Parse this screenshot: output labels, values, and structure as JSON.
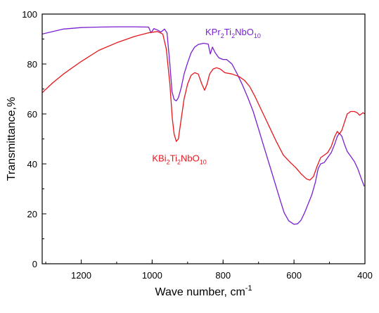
{
  "chart_data": {
    "type": "line",
    "xlabel": {
      "text": "Wave number, cm",
      "sup": "-1"
    },
    "ylabel": "Transmittance,%",
    "xlim": [
      1310,
      400
    ],
    "ylim": [
      0,
      100
    ],
    "x_reversed": true,
    "xticks": [
      1200,
      1000,
      800,
      600,
      400
    ],
    "yticks": [
      0,
      20,
      40,
      60,
      80,
      100
    ],
    "grid": false,
    "series": [
      {
        "name": "KPr2Ti2NbO10",
        "color": "#7a1fd1",
        "points": [
          [
            1310,
            92.0
          ],
          [
            1250,
            94.0
          ],
          [
            1200,
            94.6
          ],
          [
            1150,
            94.8
          ],
          [
            1100,
            94.9
          ],
          [
            1050,
            94.9
          ],
          [
            1010,
            94.8
          ],
          [
            1003,
            92.5
          ],
          [
            995,
            94.2
          ],
          [
            985,
            93.6
          ],
          [
            975,
            92.8
          ],
          [
            965,
            94.0
          ],
          [
            958,
            92.5
          ],
          [
            950,
            80.0
          ],
          [
            944,
            69.0
          ],
          [
            938,
            65.8
          ],
          [
            932,
            65.2
          ],
          [
            926,
            66.5
          ],
          [
            918,
            70.5
          ],
          [
            910,
            76.0
          ],
          [
            900,
            80.5
          ],
          [
            890,
            84.5
          ],
          [
            880,
            86.8
          ],
          [
            870,
            87.8
          ],
          [
            855,
            88.3
          ],
          [
            842,
            88.0
          ],
          [
            836,
            84.0
          ],
          [
            830,
            86.8
          ],
          [
            822,
            84.5
          ],
          [
            812,
            82.5
          ],
          [
            800,
            81.8
          ],
          [
            790,
            81.8
          ],
          [
            775,
            80.0
          ],
          [
            760,
            76.0
          ],
          [
            745,
            71.5
          ],
          [
            730,
            66.5
          ],
          [
            715,
            61.0
          ],
          [
            700,
            54.0
          ],
          [
            685,
            47.0
          ],
          [
            670,
            40.0
          ],
          [
            655,
            33.0
          ],
          [
            640,
            26.0
          ],
          [
            628,
            20.5
          ],
          [
            615,
            17.2
          ],
          [
            600,
            15.8
          ],
          [
            590,
            16.0
          ],
          [
            580,
            17.5
          ],
          [
            570,
            20.5
          ],
          [
            560,
            24.0
          ],
          [
            550,
            27.5
          ],
          [
            540,
            32.5
          ],
          [
            532,
            38.0
          ],
          [
            525,
            40.0
          ],
          [
            515,
            40.5
          ],
          [
            505,
            42.5
          ],
          [
            495,
            44.5
          ],
          [
            485,
            48.0
          ],
          [
            478,
            51.0
          ],
          [
            472,
            52.3
          ],
          [
            465,
            51.0
          ],
          [
            458,
            48.0
          ],
          [
            450,
            45.0
          ],
          [
            440,
            43.0
          ],
          [
            430,
            41.0
          ],
          [
            420,
            38.0
          ],
          [
            410,
            34.0
          ],
          [
            402,
            31.0
          ]
        ]
      },
      {
        "name": "KBi2Ti2NbO10",
        "color": "#e6161c",
        "points": [
          [
            1310,
            68.5
          ],
          [
            1280,
            72.5
          ],
          [
            1250,
            76.0
          ],
          [
            1200,
            81.0
          ],
          [
            1150,
            85.5
          ],
          [
            1100,
            88.5
          ],
          [
            1050,
            91.0
          ],
          [
            1010,
            92.5
          ],
          [
            985,
            93.0
          ],
          [
            970,
            92.0
          ],
          [
            960,
            86.0
          ],
          [
            950,
            72.0
          ],
          [
            943,
            58.0
          ],
          [
            938,
            52.0
          ],
          [
            932,
            49.0
          ],
          [
            926,
            50.0
          ],
          [
            918,
            58.0
          ],
          [
            910,
            66.0
          ],
          [
            900,
            72.0
          ],
          [
            890,
            75.5
          ],
          [
            880,
            76.5
          ],
          [
            870,
            76.0
          ],
          [
            860,
            72.0
          ],
          [
            852,
            69.5
          ],
          [
            845,
            72.0
          ],
          [
            838,
            76.0
          ],
          [
            828,
            78.0
          ],
          [
            818,
            78.5
          ],
          [
            808,
            78.0
          ],
          [
            795,
            76.5
          ],
          [
            775,
            76.0
          ],
          [
            755,
            75.0
          ],
          [
            740,
            73.5
          ],
          [
            725,
            71.0
          ],
          [
            710,
            67.0
          ],
          [
            690,
            61.0
          ],
          [
            670,
            55.0
          ],
          [
            650,
            49.0
          ],
          [
            630,
            43.5
          ],
          [
            610,
            40.5
          ],
          [
            595,
            38.5
          ],
          [
            580,
            36.0
          ],
          [
            565,
            34.0
          ],
          [
            555,
            33.5
          ],
          [
            545,
            35.0
          ],
          [
            535,
            39.0
          ],
          [
            525,
            42.5
          ],
          [
            515,
            43.5
          ],
          [
            505,
            44.5
          ],
          [
            495,
            47.0
          ],
          [
            485,
            51.0
          ],
          [
            478,
            53.0
          ],
          [
            472,
            52.0
          ],
          [
            465,
            53.5
          ],
          [
            458,
            56.5
          ],
          [
            450,
            60.0
          ],
          [
            440,
            61.0
          ],
          [
            430,
            61.0
          ],
          [
            422,
            60.5
          ],
          [
            415,
            59.5
          ],
          [
            410,
            60.0
          ],
          [
            405,
            60.5
          ],
          [
            401,
            60.0
          ]
        ]
      }
    ],
    "annotations": [
      {
        "for": "KPr2Ti2NbO10",
        "parts": [
          [
            "KPr",
            ""
          ],
          [
            "2",
            "sub"
          ],
          [
            "Ti",
            ""
          ],
          [
            "2",
            "sub"
          ],
          [
            "NbO",
            ""
          ],
          [
            "10",
            "sub"
          ]
        ],
        "color": "#7a1fd1",
        "at": [
          850,
          91.5
        ]
      },
      {
        "for": "KBi2Ti2NbO10",
        "parts": [
          [
            "KBi",
            ""
          ],
          [
            "2",
            "sub"
          ],
          [
            "Ti",
            ""
          ],
          [
            "2",
            "sub"
          ],
          [
            "NbO",
            ""
          ],
          [
            "10",
            "sub"
          ]
        ],
        "color": "#e6161c",
        "at": [
          1000,
          41.0
        ]
      }
    ]
  }
}
